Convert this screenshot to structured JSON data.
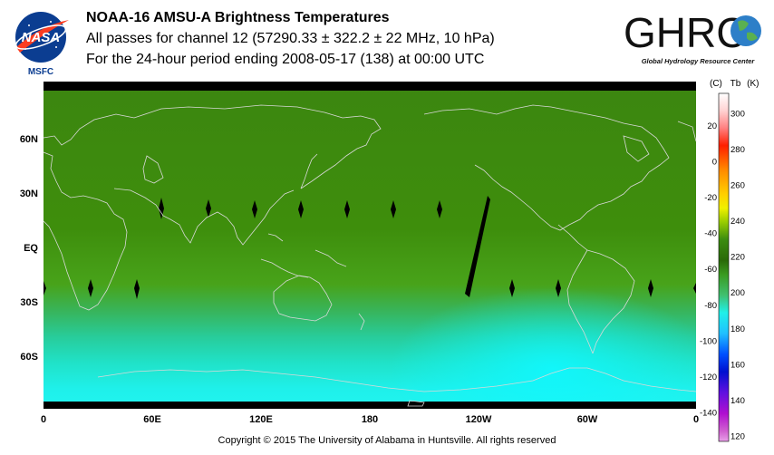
{
  "header": {
    "title": "NOAA-16 AMSU-A Brightness Temperatures",
    "subtitle": "All passes for channel 12 (57290.33 ± 322.2 ± 22 MHz, 10 hPa)",
    "period": "For the 24-hour period ending 2008-05-17 (138) at 00:00 UTC"
  },
  "logos": {
    "nasa": {
      "text": "NASA",
      "sub": "MSFC"
    },
    "ghrc": {
      "text": "GHRC",
      "sub": "Global Hydrology Resource Center"
    }
  },
  "map": {
    "lat_labels": [
      "60N",
      "30N",
      "EQ",
      "30S",
      "60S"
    ],
    "lon_labels": [
      "0",
      "60E",
      "120E",
      "180",
      "120W",
      "60W",
      "0"
    ]
  },
  "colorbar": {
    "header_c": "(C)",
    "header_tb": "Tb",
    "header_k": "(K)",
    "celsius_ticks": [
      "20",
      "0",
      "-20",
      "-40",
      "-60",
      "-80",
      "-100",
      "-120",
      "-140"
    ],
    "kelvin_ticks": [
      "300",
      "280",
      "260",
      "240",
      "220",
      "200",
      "180",
      "160",
      "140",
      "120"
    ]
  },
  "footer": {
    "copyright": "Copyright © 2015 The University of Alabama in Huntsville.  All rights reserved"
  },
  "colors": {
    "missing": "#000000",
    "coast": "#d8d8d8",
    "tropics_green": "#3d8d0c",
    "south_cyan": "#1ff0e8"
  }
}
